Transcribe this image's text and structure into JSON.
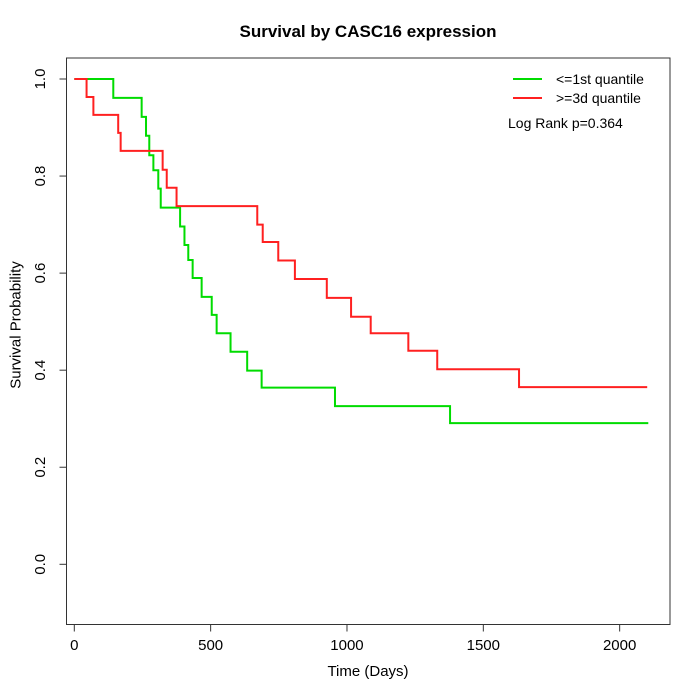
{
  "chart_data": {
    "type": "line",
    "subtype": "kaplan-meier-step",
    "title": "Survival by CASC16 expression",
    "xlabel": "Time (Days)",
    "ylabel": "Survival Probability",
    "xlim": [
      0,
      2184
    ],
    "ylim": [
      0,
      1
    ],
    "grid": false,
    "x_ticks": [
      0,
      500,
      1000,
      1500,
      2000
    ],
    "x_tick_labels": [
      "0",
      "500",
      "1000",
      "1500",
      "2000"
    ],
    "y_ticks": [
      0.0,
      0.2,
      0.4,
      0.6,
      0.8,
      1.0
    ],
    "y_tick_labels": [
      "0.0",
      "0.2",
      "0.4",
      "0.6",
      "0.8",
      "1.0"
    ],
    "legend_position": "top-right",
    "annotation": "Log Rank p=0.364",
    "series": [
      {
        "id": "first-quantile",
        "name": "<=1st quantile",
        "color": "#00DC00",
        "end_day": 2105,
        "steps": [
          [
            0,
            1.0
          ],
          [
            143,
            0.961
          ],
          [
            247,
            0.922
          ],
          [
            263,
            0.883
          ],
          [
            275,
            0.843
          ],
          [
            290,
            0.812
          ],
          [
            308,
            0.774
          ],
          [
            317,
            0.735
          ],
          [
            388,
            0.696
          ],
          [
            404,
            0.658
          ],
          [
            418,
            0.627
          ],
          [
            434,
            0.59
          ],
          [
            467,
            0.551
          ],
          [
            504,
            0.514
          ],
          [
            522,
            0.476
          ],
          [
            573,
            0.438
          ],
          [
            634,
            0.399
          ],
          [
            687,
            0.364
          ],
          [
            956,
            0.326
          ],
          [
            1378,
            0.291
          ]
        ]
      },
      {
        "id": "third-quantile",
        "name": ">=3d quantile",
        "color": "#FF2020",
        "end_day": 2101,
        "steps": [
          [
            0,
            1.0
          ],
          [
            45,
            0.963
          ],
          [
            70,
            0.926
          ],
          [
            161,
            0.889
          ],
          [
            170,
            0.852
          ],
          [
            324,
            0.813
          ],
          [
            339,
            0.776
          ],
          [
            375,
            0.738
          ],
          [
            671,
            0.7
          ],
          [
            691,
            0.664
          ],
          [
            748,
            0.626
          ],
          [
            809,
            0.588
          ],
          [
            926,
            0.549
          ],
          [
            1015,
            0.51
          ],
          [
            1087,
            0.476
          ],
          [
            1225,
            0.44
          ],
          [
            1331,
            0.402
          ],
          [
            1631,
            0.365
          ]
        ]
      }
    ]
  }
}
